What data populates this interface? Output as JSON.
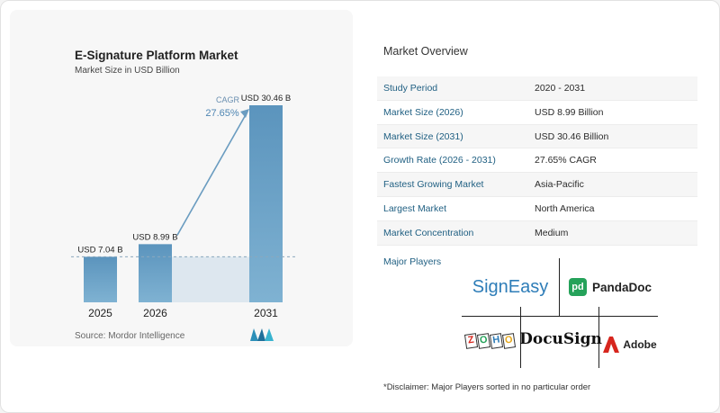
{
  "chart": {
    "title": "E-Signature Platform Market",
    "subtitle": "Market Size in USD Billion",
    "cagr_label": "CAGR",
    "cagr_value": "27.65%",
    "source": "Source:  Mordor Intelligence"
  },
  "chart_data": {
    "type": "bar",
    "categories": [
      "2025",
      "2026",
      "2031"
    ],
    "values": [
      7.04,
      8.99,
      30.46
    ],
    "data_labels": [
      "USD 7.04 B",
      "USD 8.99 B",
      "USD 30.46 B"
    ],
    "title": "E-Signature Platform Market",
    "subtitle": "Market Size in USD Billion",
    "ylim": [
      0,
      32
    ],
    "grid": false,
    "annotations": [
      {
        "label": "CAGR",
        "value": "27.65%"
      }
    ],
    "colors": {
      "bar_light": "#7fb2d2",
      "bar_dark": "#5b94bd",
      "shade": "#dde7ef",
      "dash": "#8aa8bd",
      "arrow": "#6a9cc0"
    }
  },
  "overview": {
    "title": "Market Overview",
    "rows": [
      {
        "label": "Study Period",
        "value": "2020 - 2031"
      },
      {
        "label": "Market Size (2026)",
        "value": "USD 8.99 Billion"
      },
      {
        "label": "Market Size (2031)",
        "value": "USD 30.46 Billion"
      },
      {
        "label": "Growth Rate (2026 - 2031)",
        "value": "27.65% CAGR"
      },
      {
        "label": "Fastest Growing Market",
        "value": "Asia-Pacific"
      },
      {
        "label": "Largest Market",
        "value": "North America"
      },
      {
        "label": "Market Concentration",
        "value": "Medium"
      }
    ],
    "players_label": "Major Players",
    "players": {
      "signeasy": "SignEasy",
      "pandadoc": "PandaDoc",
      "pandadoc_badge": "pd",
      "zoho": [
        "Z",
        "O",
        "H",
        "O"
      ],
      "docusign": "DocuSign",
      "adobe": "Adobe"
    },
    "disclaimer": "*Disclaimer: Major Players sorted in no particular order"
  }
}
